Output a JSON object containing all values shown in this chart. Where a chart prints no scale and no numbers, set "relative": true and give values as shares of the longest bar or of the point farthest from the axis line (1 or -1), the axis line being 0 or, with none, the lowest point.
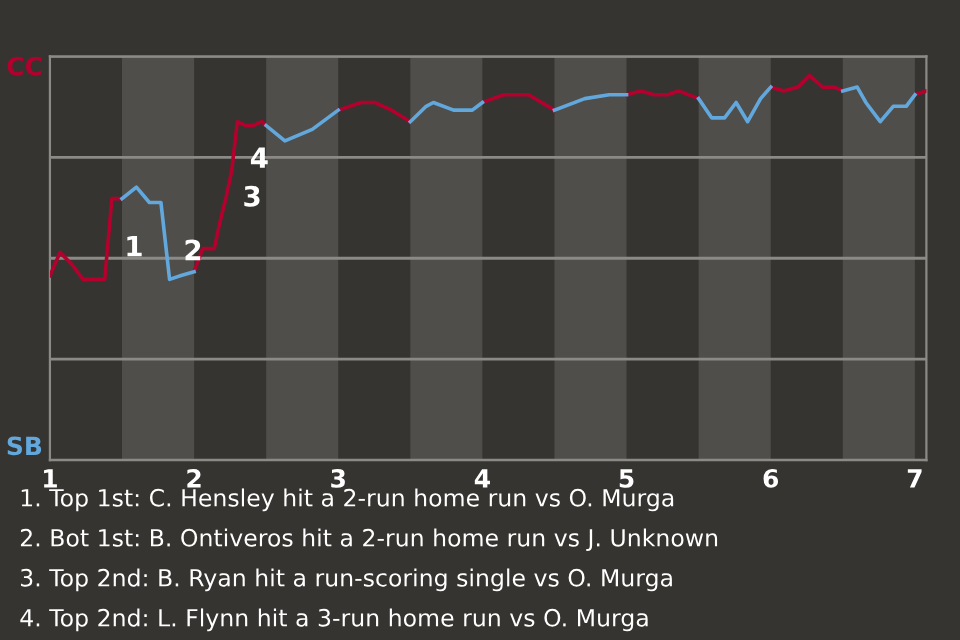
{
  "chart_data": {
    "type": "line",
    "relative": true,
    "x": [
      1.0,
      1.07,
      1.15,
      1.23,
      1.3,
      1.38,
      1.43,
      1.5,
      1.6,
      1.69,
      1.77,
      1.83,
      1.91,
      2.0,
      2.06,
      2.1,
      2.14,
      2.18,
      2.22,
      2.26,
      2.3,
      2.36,
      2.41,
      2.47,
      2.5,
      2.63,
      2.82,
      3.0,
      3.16,
      3.25,
      3.37,
      3.5,
      3.61,
      3.66,
      3.8,
      3.93,
      4.0,
      4.15,
      4.32,
      4.5,
      4.71,
      4.88,
      5.0,
      5.1,
      5.19,
      5.29,
      5.36,
      5.5,
      5.59,
      5.68,
      5.76,
      5.84,
      5.93,
      6.0,
      6.09,
      6.19,
      6.27,
      6.36,
      6.44,
      6.5,
      6.6,
      6.66,
      6.76,
      6.85,
      6.94,
      7.0,
      7.08
    ],
    "series": [
      {
        "color": "#b3002d",
        "values": [
          0.48,
          0.54,
          0.51,
          0.47,
          0.47,
          0.47,
          0.68,
          0.68,
          null,
          null,
          null,
          null,
          null,
          0.49,
          0.55,
          0.55,
          0.55,
          0.62,
          0.68,
          0.75,
          0.88,
          0.87,
          0.87,
          0.88,
          0.87,
          null,
          null,
          0.91,
          0.93,
          0.93,
          0.91,
          0.88,
          null,
          null,
          null,
          null,
          0.93,
          0.95,
          0.95,
          0.91,
          null,
          null,
          0.95,
          0.96,
          0.95,
          0.95,
          0.96,
          0.94,
          null,
          null,
          null,
          null,
          null,
          0.97,
          0.96,
          0.97,
          1,
          0.97,
          0.97,
          0.96,
          null,
          null,
          null,
          null,
          null,
          0.95,
          0.96
        ]
      },
      {
        "color": "#62a8dc",
        "values": [
          null,
          null,
          null,
          null,
          null,
          null,
          null,
          0.68,
          0.71,
          0.67,
          0.67,
          0.47,
          0.48,
          0.49,
          null,
          null,
          null,
          null,
          null,
          null,
          null,
          null,
          null,
          null,
          0.87,
          0.83,
          0.86,
          0.91,
          null,
          null,
          null,
          0.88,
          0.92,
          0.93,
          0.91,
          0.91,
          0.93,
          null,
          null,
          0.91,
          0.94,
          0.95,
          0.95,
          null,
          null,
          null,
          null,
          0.94,
          0.89,
          0.89,
          0.93,
          0.88,
          0.94,
          0.97,
          null,
          null,
          null,
          null,
          null,
          0.96,
          0.97,
          0.93,
          0.88,
          0.92,
          0.92,
          0.95,
          null
        ]
      }
    ],
    "xlim": [
      1,
      7.08
    ],
    "xticks": [
      1,
      2,
      3,
      4,
      5,
      6,
      7
    ],
    "grid": "y",
    "bands": [
      {
        "axis": "x",
        "from": 1.5,
        "to": 2,
        "color": "#4f4e4b"
      },
      {
        "axis": "x",
        "from": 2.5,
        "to": 3,
        "color": "#4f4e4b"
      },
      {
        "axis": "x",
        "from": 3.5,
        "to": 4,
        "color": "#4f4e4b"
      },
      {
        "axis": "x",
        "from": 4.5,
        "to": 5,
        "color": "#4f4e4b"
      },
      {
        "axis": "x",
        "from": 5.5,
        "to": 6,
        "color": "#4f4e4b"
      },
      {
        "axis": "x",
        "from": 6.5,
        "to": 7,
        "color": "#4f4e4b"
      }
    ],
    "annotations": [
      "CC",
      "SB",
      {
        "text": "1",
        "x": 1.4,
        "y": 0.55
      },
      {
        "text": "2",
        "x": 1.81,
        "y": 0.54
      },
      {
        "text": "3",
        "x": 2.22,
        "y": 0.68
      },
      {
        "text": "4",
        "x": 2.27,
        "y": 0.78
      },
      "1. Top 1st: C. Hensley hit a 2-run home run vs O. Murga",
      "2. Bot 1st: B. Ontiveros hit a 2-run home run vs J. Unknown",
      "3. Top 2nd: B. Ryan hit a run-scoring single vs O. Murga",
      "4. Top 2nd: L. Flynn hit a 3-run home run vs O. Murga"
    ]
  }
}
